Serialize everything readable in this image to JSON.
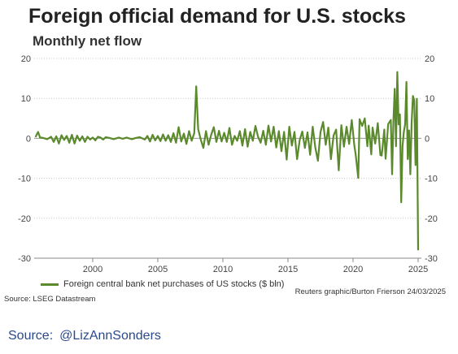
{
  "chart_data": {
    "type": "line",
    "title": "Foreign official demand for U.S. stocks",
    "subtitle": "Monthly net flow",
    "xlabel": "",
    "ylabel": "",
    "xlim": [
      1995.5,
      2025.25
    ],
    "ylim": [
      -30,
      20
    ],
    "x_ticks": [
      "2000",
      "2005",
      "2010",
      "2015",
      "2020",
      "2025"
    ],
    "y_ticks": [
      "20",
      "10",
      "0",
      "-10",
      "-20",
      "-30"
    ],
    "grid": "horizontal",
    "legend_position": "bottom-left",
    "series": [
      {
        "name": "Foreign central bank net purchases of US stocks ($ bln)",
        "color": "#5a8a2c",
        "points": [
          [
            1995.6,
            0.3
          ],
          [
            1995.8,
            1.6
          ],
          [
            1995.95,
            0.2
          ],
          [
            1996.2,
            0.1
          ],
          [
            1996.5,
            -0.2
          ],
          [
            1996.8,
            0.4
          ],
          [
            1997.0,
            -0.9
          ],
          [
            1997.2,
            0.5
          ],
          [
            1997.4,
            -1.3
          ],
          [
            1997.6,
            0.8
          ],
          [
            1997.8,
            -0.4
          ],
          [
            1998.0,
            0.6
          ],
          [
            1998.2,
            -1.1
          ],
          [
            1998.4,
            0.9
          ],
          [
            1998.6,
            -1.3
          ],
          [
            1998.8,
            0.7
          ],
          [
            1999.0,
            -0.6
          ],
          [
            1999.2,
            0.5
          ],
          [
            1999.4,
            -0.9
          ],
          [
            1999.6,
            0.4
          ],
          [
            1999.8,
            -0.3
          ],
          [
            2000.0,
            0.2
          ],
          [
            2000.2,
            -0.5
          ],
          [
            2000.4,
            0.4
          ],
          [
            2000.6,
            0.2
          ],
          [
            2000.8,
            -0.3
          ],
          [
            2001.0,
            0.3
          ],
          [
            2001.3,
            0.1
          ],
          [
            2001.6,
            -0.2
          ],
          [
            2002.0,
            0.2
          ],
          [
            2002.3,
            -0.1
          ],
          [
            2002.6,
            0.2
          ],
          [
            2003.0,
            -0.2
          ],
          [
            2003.3,
            0.1
          ],
          [
            2003.6,
            0.3
          ],
          [
            2004.0,
            -0.3
          ],
          [
            2004.2,
            0.6
          ],
          [
            2004.4,
            -0.8
          ],
          [
            2004.6,
            0.9
          ],
          [
            2004.8,
            -0.5
          ],
          [
            2005.0,
            0.6
          ],
          [
            2005.2,
            -0.7
          ],
          [
            2005.4,
            1.0
          ],
          [
            2005.6,
            -0.6
          ],
          [
            2005.8,
            0.8
          ],
          [
            2006.0,
            -0.9
          ],
          [
            2006.2,
            1.3
          ],
          [
            2006.4,
            -1.1
          ],
          [
            2006.6,
            2.8
          ],
          [
            2006.8,
            -0.8
          ],
          [
            2007.0,
            1.2
          ],
          [
            2007.2,
            -1.4
          ],
          [
            2007.4,
            1.8
          ],
          [
            2007.6,
            -0.6
          ],
          [
            2007.8,
            1.3
          ],
          [
            2007.95,
            13.0
          ],
          [
            2008.1,
            2.3
          ],
          [
            2008.3,
            -0.3
          ],
          [
            2008.5,
            -2.4
          ],
          [
            2008.7,
            1.8
          ],
          [
            2008.9,
            -1.6
          ],
          [
            2009.1,
            0.9
          ],
          [
            2009.3,
            2.8
          ],
          [
            2009.5,
            -0.9
          ],
          [
            2009.7,
            1.9
          ],
          [
            2009.9,
            -0.8
          ],
          [
            2010.1,
            1.4
          ],
          [
            2010.3,
            -0.9
          ],
          [
            2010.5,
            2.6
          ],
          [
            2010.7,
            -1.6
          ],
          [
            2010.9,
            0.6
          ],
          [
            2011.1,
            -0.6
          ],
          [
            2011.3,
            1.8
          ],
          [
            2011.5,
            -1.8
          ],
          [
            2011.7,
            2.3
          ],
          [
            2011.9,
            -2.1
          ],
          [
            2012.1,
            1.6
          ],
          [
            2012.3,
            -0.6
          ],
          [
            2012.5,
            3.1
          ],
          [
            2012.7,
            0.4
          ],
          [
            2012.9,
            -1.1
          ],
          [
            2013.1,
            1.9
          ],
          [
            2013.3,
            -1.6
          ],
          [
            2013.5,
            3.2
          ],
          [
            2013.7,
            -0.8
          ],
          [
            2013.9,
            2.9
          ],
          [
            2014.1,
            -2.3
          ],
          [
            2014.3,
            1.8
          ],
          [
            2014.5,
            -3.2
          ],
          [
            2014.7,
            1.6
          ],
          [
            2014.9,
            -5.3
          ],
          [
            2015.1,
            2.9
          ],
          [
            2015.3,
            -1.8
          ],
          [
            2015.5,
            1.6
          ],
          [
            2015.7,
            -5.2
          ],
          [
            2015.9,
            -0.4
          ],
          [
            2016.1,
            1.7
          ],
          [
            2016.3,
            -2.4
          ],
          [
            2016.5,
            1.5
          ],
          [
            2016.7,
            -4.1
          ],
          [
            2016.9,
            2.9
          ],
          [
            2017.1,
            -2.3
          ],
          [
            2017.3,
            -5.6
          ],
          [
            2017.5,
            1.6
          ],
          [
            2017.7,
            4.1
          ],
          [
            2017.9,
            -1.6
          ],
          [
            2018.1,
            2.7
          ],
          [
            2018.3,
            -5.2
          ],
          [
            2018.5,
            0.7
          ],
          [
            2018.7,
            2.2
          ],
          [
            2018.9,
            -8.0
          ],
          [
            2019.1,
            3.3
          ],
          [
            2019.3,
            -2.1
          ],
          [
            2019.5,
            2.9
          ],
          [
            2019.7,
            -1.4
          ],
          [
            2019.9,
            4.6
          ],
          [
            2020.1,
            -1.8
          ],
          [
            2020.2,
            -4.0
          ],
          [
            2020.4,
            -9.9
          ],
          [
            2020.5,
            4.8
          ],
          [
            2020.7,
            3.1
          ],
          [
            2020.9,
            5.0
          ],
          [
            2021.1,
            -2.0
          ],
          [
            2021.2,
            3.2
          ],
          [
            2021.4,
            -4.0
          ],
          [
            2021.5,
            2.7
          ],
          [
            2021.7,
            -1.3
          ],
          [
            2021.9,
            3.8
          ],
          [
            2022.1,
            -4.2
          ],
          [
            2022.2,
            -4.3
          ],
          [
            2022.4,
            2.2
          ],
          [
            2022.5,
            -5.1
          ],
          [
            2022.7,
            3.6
          ],
          [
            2022.9,
            4.6
          ],
          [
            2023.0,
            -9.0
          ],
          [
            2023.1,
            4.2
          ],
          [
            2023.2,
            12.4
          ],
          [
            2023.3,
            -2.0
          ],
          [
            2023.4,
            16.6
          ],
          [
            2023.5,
            3.5
          ],
          [
            2023.6,
            6.0
          ],
          [
            2023.7,
            -16.0
          ],
          [
            2023.8,
            -2.0
          ],
          [
            2023.9,
            1.6
          ],
          [
            2024.0,
            3.5
          ],
          [
            2024.1,
            14.1
          ],
          [
            2024.2,
            -5.2
          ],
          [
            2024.3,
            2.0
          ],
          [
            2024.4,
            -9.0
          ],
          [
            2024.5,
            3.9
          ],
          [
            2024.6,
            10.6
          ],
          [
            2024.7,
            9.5
          ],
          [
            2024.8,
            -6.7
          ],
          [
            2024.9,
            9.9
          ],
          [
            2025.0,
            -28.0
          ]
        ]
      }
    ]
  },
  "labels": {
    "credit": "Reuters graphic/Burton Frierson 24/03/2025",
    "source": "Source: LSEG Datastream",
    "footer_source": "Source:",
    "footer_handle": "@LizAnnSonders"
  }
}
